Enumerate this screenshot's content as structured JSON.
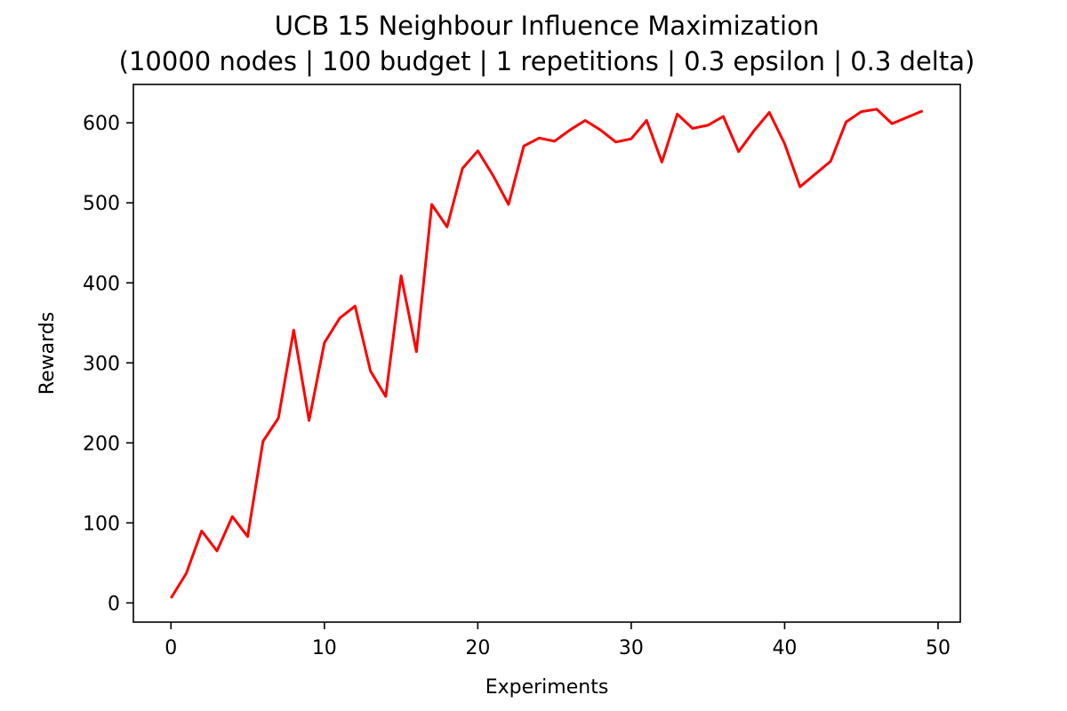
{
  "chart_data": {
    "type": "line",
    "title": "UCB 15 Neighbour Influence Maximization",
    "subtitle": "(10000 nodes | 100 budget | 1 repetitions | 0.3 epsilon | 0.3 delta)",
    "xlabel": "Experiments",
    "ylabel": "Rewards",
    "xlim": [
      -2.45,
      51.45
    ],
    "ylim": [
      -24,
      648
    ],
    "xticks": [
      0,
      10,
      20,
      30,
      40,
      50
    ],
    "yticks": [
      0,
      100,
      200,
      300,
      400,
      500,
      600
    ],
    "grid": false,
    "series": [
      {
        "color": "#ff0000",
        "x": [
          0,
          1,
          2,
          3,
          4,
          5,
          6,
          7,
          8,
          9,
          10,
          11,
          12,
          13,
          14,
          15,
          16,
          17,
          18,
          19,
          20,
          21,
          22,
          23,
          24,
          25,
          26,
          27,
          28,
          29,
          30,
          31,
          32,
          33,
          34,
          35,
          36,
          37,
          38,
          39,
          40,
          41,
          42,
          43,
          44,
          45,
          46,
          47,
          48,
          49
        ],
        "values": [
          6,
          37,
          90,
          65,
          108,
          83,
          202,
          231,
          341,
          228,
          325,
          356,
          371,
          290,
          258,
          409,
          314,
          498,
          470,
          543,
          565,
          534,
          498,
          571,
          581,
          577,
          591,
          603,
          591,
          576,
          580,
          603,
          551,
          611,
          593,
          597,
          608,
          564,
          590,
          613,
          574,
          520,
          536,
          552,
          601,
          614,
          617,
          599,
          607,
          615
        ]
      }
    ]
  }
}
